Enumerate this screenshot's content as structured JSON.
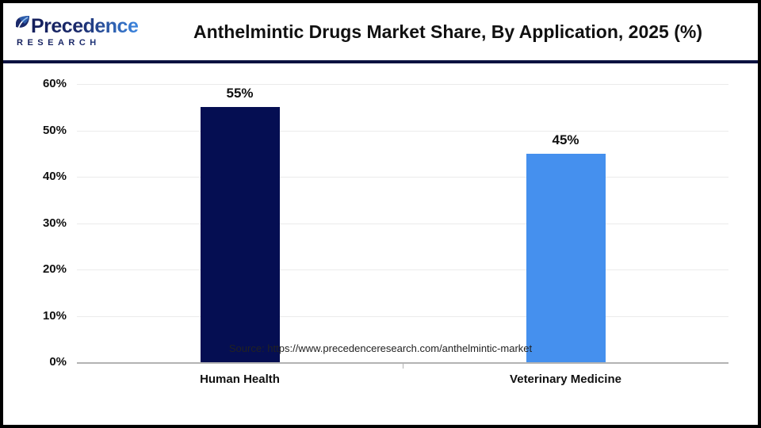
{
  "header": {
    "logo": {
      "brand": "Precedence",
      "sub": "RESEARCH"
    },
    "title": "Anthelmintic Drugs Market Share, By Application, 2025 (%)"
  },
  "footer": {
    "source": "Source: https://www.precedenceresearch.com/anthelmintic-market"
  },
  "colors": {
    "bar_human_health": "#050e52",
    "bar_veterinary_medicine": "#4590ee",
    "header_divider": "#0a1240",
    "logo_navy": "#1b2a6b",
    "logo_blue": "#3c86e0",
    "gridline": "#ebebeb",
    "axis": "#b3b3b3"
  },
  "chart_data": {
    "type": "bar",
    "title": "Anthelmintic Drugs Market Share, By Application, 2025 (%)",
    "categories": [
      "Human Health",
      "Veterinary Medicine"
    ],
    "values": [
      55,
      45
    ],
    "value_labels": [
      "55%",
      "45%"
    ],
    "bar_colors": [
      "#050e52",
      "#4590ee"
    ],
    "ylim": [
      0,
      60
    ],
    "ytick_step": 10,
    "ytick_labels": [
      "0%",
      "10%",
      "20%",
      "30%",
      "40%",
      "50%",
      "60%"
    ],
    "grid": true,
    "legend": "none",
    "xlabel": "",
    "ylabel": ""
  }
}
